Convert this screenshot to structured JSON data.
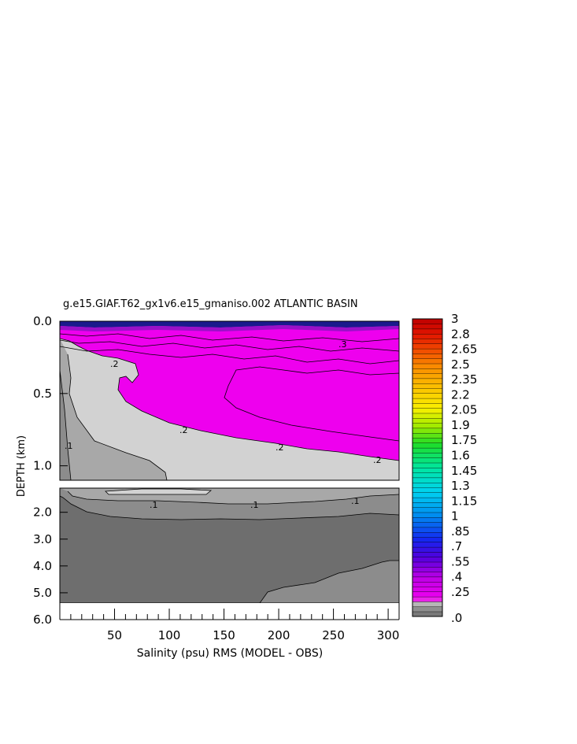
{
  "chart_data": {
    "type": "heatmap",
    "title": "g.e15.GIAF.T62_gx1v6.e15_gmaniso.002 ATLANTIC BASIN",
    "xlabel": "Salinity (psu) RMS (MODEL - OBS)",
    "ylabel": "DEPTH (km)",
    "xlim": [
      0,
      310
    ],
    "x_ticks": [
      "50",
      "100",
      "150",
      "200",
      "250",
      "300"
    ],
    "y_ticks_upper": [
      "0.0",
      "0.5",
      "1.0"
    ],
    "y_ticks_lower": [
      "2.0",
      "3.0",
      "4.0",
      "5.0",
      "6.0"
    ],
    "upper_ylim": [
      0,
      1.1
    ],
    "lower_ylim": [
      1.1,
      6.0
    ],
    "colorbar_levels": [
      "3",
      "2.8",
      "2.65",
      "2.5",
      "2.35",
      "2.2",
      "2.05",
      "1.9",
      "1.75",
      "1.6",
      "1.45",
      "1.3",
      "1.15",
      "1",
      ".85",
      ".7",
      ".55",
      ".4",
      ".25",
      ".0"
    ],
    "contour_labels_upper": [
      ".2",
      ".2",
      ".2",
      ".2",
      ".1",
      ".3"
    ],
    "contour_labels_lower": [
      ".1",
      ".1",
      ".1"
    ],
    "colors": {
      "magenta": "#ee00ee",
      "light_gray": "#d2d2d2",
      "mid_gray": "#a8a8a8",
      "gray": "#8c8c8c",
      "dark_gray": "#6e6e6e",
      "navy": "#1a1a8c"
    }
  }
}
